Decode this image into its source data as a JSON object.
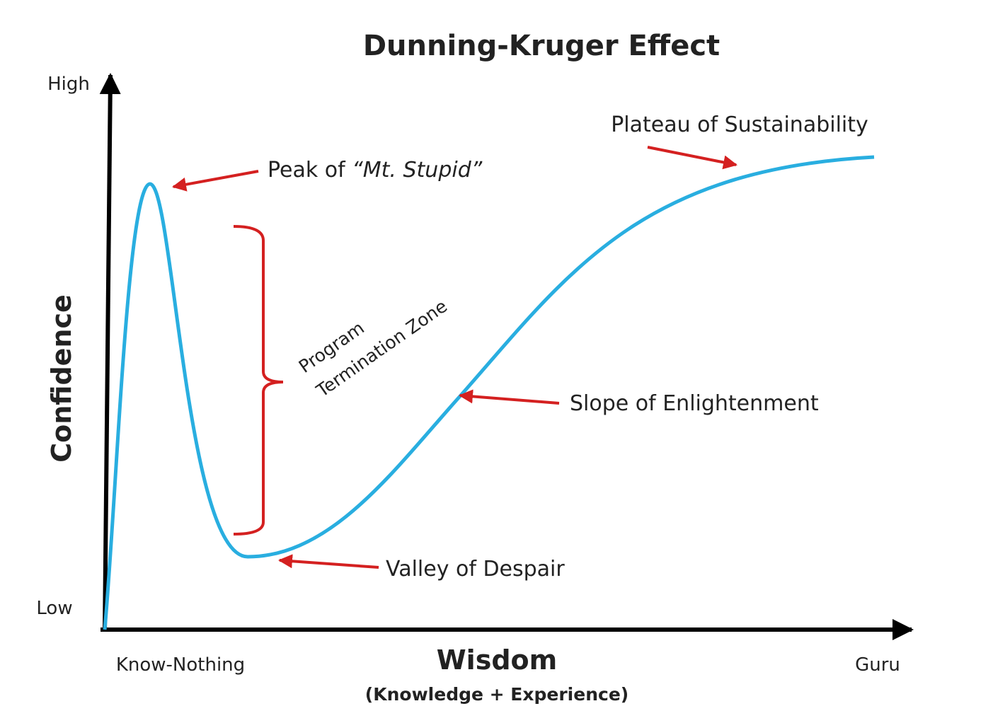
{
  "title": "Dunning-Kruger Effect",
  "y_axis": {
    "label": "Confidence",
    "high": "High",
    "low": "Low"
  },
  "x_axis": {
    "label": "Wisdom",
    "sublabel": "(Knowledge + Experience)",
    "start": "Know-Nothing",
    "end": "Guru"
  },
  "annotations": {
    "peak": {
      "prefix": "Peak of ",
      "name": "“Mt. Stupid”"
    },
    "zone": {
      "line1": "Program",
      "line2": "Termination Zone"
    },
    "slope": "Slope of Enlightenment",
    "valley": "Valley of Despair",
    "plateau": "Plateau of Sustainability"
  }
}
